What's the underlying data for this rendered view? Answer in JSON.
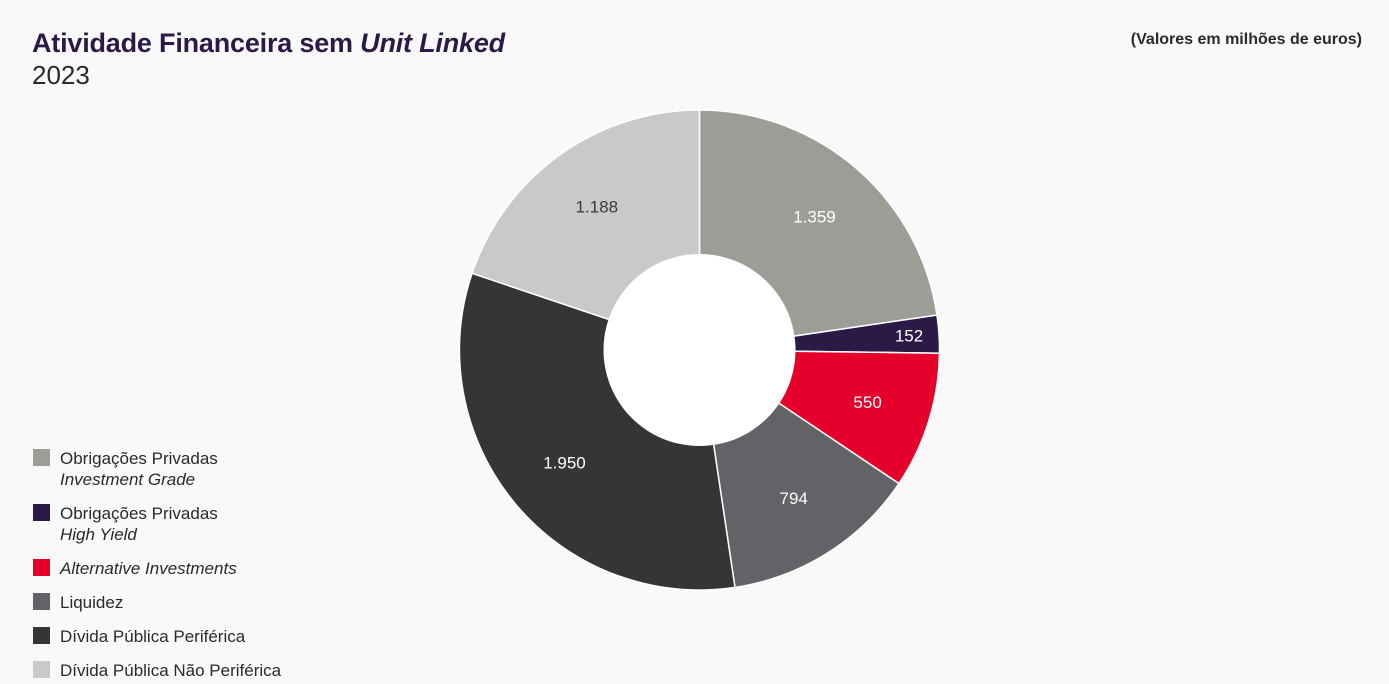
{
  "chart_data": {
    "type": "pie",
    "variant": "donut",
    "title": "Atividade Financeira sem",
    "title_italic": "Unit Linked",
    "subtitle": "2023",
    "units_note": "(Valores em milhões de euros)",
    "slices": [
      {
        "name": "Obrigações Privadas",
        "name_italic": "Investment Grade",
        "value": 1359,
        "label": "1.359",
        "color": "#9d9d98",
        "label_color": "#ffffff"
      },
      {
        "name": "Obrigações Privadas",
        "name_italic": "High Yield",
        "value": 152,
        "label": "152",
        "color": "#2b1a45",
        "label_color": "#ffffff"
      },
      {
        "name": "",
        "name_italic": "Alternative Investments",
        "value": 550,
        "label": "550",
        "color": "#e4002b",
        "label_color": "#ffffff"
      },
      {
        "name": "Liquidez",
        "name_italic": "",
        "value": 794,
        "label": "794",
        "color": "#626366",
        "label_color": "#ffffff"
      },
      {
        "name": "Dívida Pública Periférica",
        "name_italic": "",
        "value": 1950,
        "label": "1.950",
        "color": "#353535",
        "label_color": "#ffffff"
      },
      {
        "name": "Dívida Pública Não Periférica",
        "name_italic": "",
        "value": 1188,
        "label": "1.188",
        "color": "#c8c9cb",
        "label_color": "#3a3a3a"
      }
    ],
    "legend_position": "bottom-left"
  }
}
